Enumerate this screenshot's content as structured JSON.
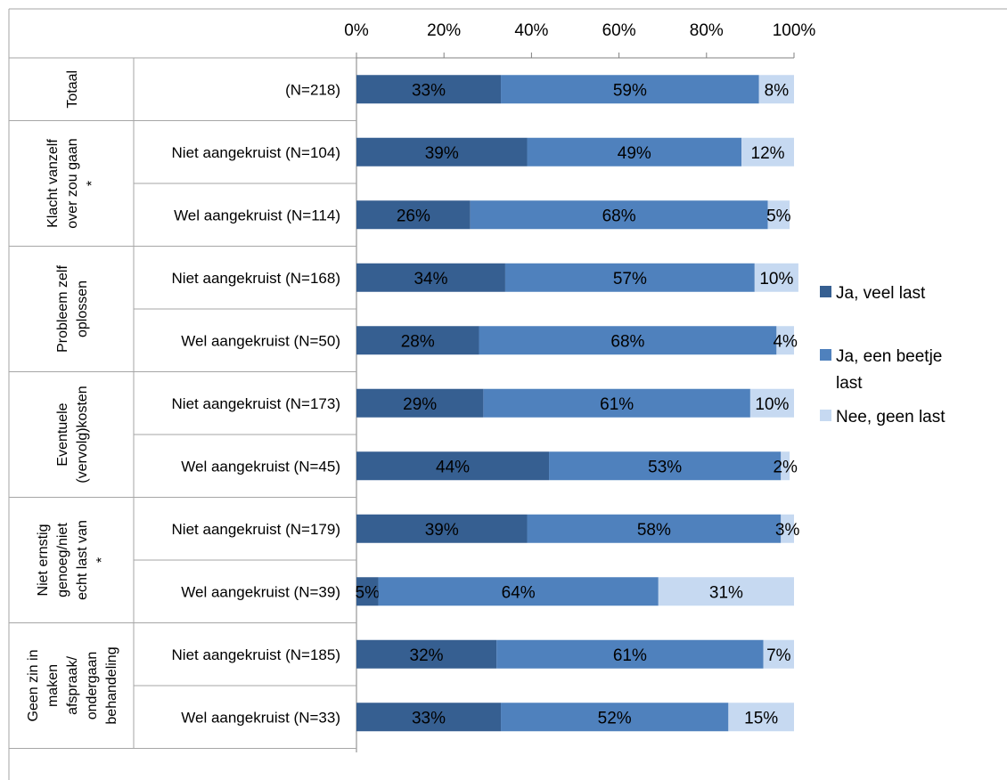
{
  "chart_data": {
    "type": "bar",
    "stacked": true,
    "orientation": "horizontal",
    "title": "",
    "xlabel": "",
    "ylabel": "",
    "xlim": [
      0,
      100
    ],
    "x_ticks": [
      "0%",
      "20%",
      "40%",
      "60%",
      "80%",
      "100%"
    ],
    "grid": false,
    "legend_position": "right",
    "groups": [
      {
        "label": "Totaal",
        "rows": [
          0
        ]
      },
      {
        "label": "Klacht vanzelf over zou gaan *",
        "rows": [
          1,
          2
        ]
      },
      {
        "label": "Probleem zelf oplossen",
        "rows": [
          3,
          4
        ]
      },
      {
        "label": "Eventuele (vervolg)kosten",
        "rows": [
          5,
          6
        ]
      },
      {
        "label": "Niet ernstig genoeg/niet echt last van *",
        "rows": [
          7,
          8
        ]
      },
      {
        "label": "Geen zin in maken afspraak/ ondergaan behandeling",
        "rows": [
          9,
          10
        ]
      }
    ],
    "categories": [
      "(N=218)",
      "Niet aangekruist (N=104)",
      "Wel aangekruist (N=114)",
      "Niet aangekruist (N=168)",
      "Wel aangekruist (N=50)",
      "Niet aangekruist (N=173)",
      "Wel aangekruist (N=45)",
      "Niet aangekruist (N=179)",
      "Wel aangekruist (N=39)",
      "Niet aangekruist (N=185)",
      "Wel aangekruist (N=33)"
    ],
    "series": [
      {
        "name": "Ja, veel last",
        "color": "#365F91",
        "values": [
          33,
          39,
          26,
          34,
          28,
          29,
          44,
          39,
          5,
          32,
          33
        ]
      },
      {
        "name": "Ja, een beetje last",
        "color": "#4F81BD",
        "values": [
          59,
          49,
          68,
          57,
          68,
          61,
          53,
          58,
          64,
          61,
          52
        ]
      },
      {
        "name": "Nee, geen last",
        "color": "#C6D9F1",
        "values": [
          8,
          12,
          5,
          10,
          4,
          10,
          2,
          3,
          31,
          7,
          15
        ]
      }
    ],
    "value_suffix": "%"
  }
}
